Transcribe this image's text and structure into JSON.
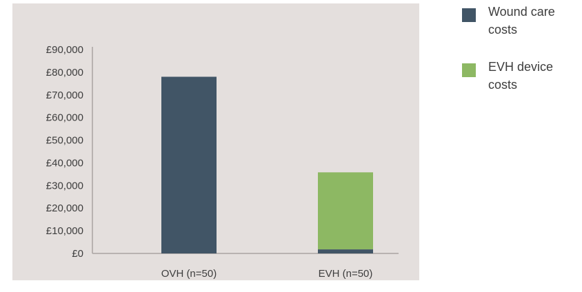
{
  "chart_data": {
    "type": "bar",
    "stacked": true,
    "categories": [
      "OVH (n=50)",
      "EVH (n=50)"
    ],
    "series": [
      {
        "name": "Wound care costs",
        "color": "#415566",
        "values": [
          78000,
          1800
        ]
      },
      {
        "name": "EVH device costs",
        "color": "#8db863",
        "values": [
          0,
          34000
        ]
      }
    ],
    "ylim": [
      0,
      90000
    ],
    "yticks": [
      0,
      10000,
      20000,
      30000,
      40000,
      50000,
      60000,
      70000,
      80000,
      90000
    ],
    "ytick_labels": [
      "£0",
      "£10,000",
      "£20,000",
      "£30,000",
      "£40,000",
      "£50,000",
      "£60,000",
      "£70,000",
      "£80,000",
      "£90,000"
    ],
    "title": "",
    "xlabel": "",
    "ylabel": "",
    "grid": false,
    "legend_position": "right",
    "background_color": "#e4dfdd"
  },
  "legend": {
    "items": [
      {
        "label": "Wound care costs",
        "color": "#415566"
      },
      {
        "label": "EVH device costs",
        "color": "#8db863"
      }
    ]
  }
}
